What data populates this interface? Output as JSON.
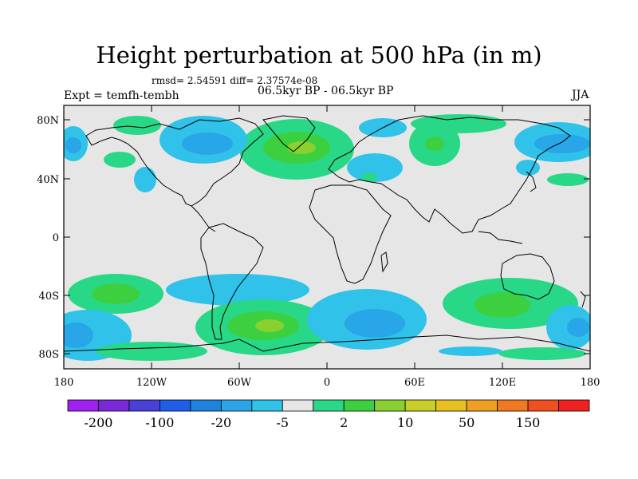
{
  "header": {
    "title": "Height perturbation at 500 hPa (in m)",
    "stats": "rmsd= 2.54591  diff= 2.37574e-08",
    "experiment": "Expt = temfh-tembh",
    "period": "06.5kyr BP - 06.5kyr BP",
    "season": "JJA"
  },
  "map": {
    "background_color": "#e6e6e6",
    "lat_ticks": [
      "80N",
      "40N",
      "0",
      "40S",
      "80S"
    ],
    "lon_ticks": [
      "180",
      "120W",
      "60W",
      "0",
      "60E",
      "120E",
      "180"
    ]
  },
  "colorbar": {
    "colors": [
      "#a020f0",
      "#7a28d8",
      "#4a40d8",
      "#1e5ee8",
      "#1e82e0",
      "#28a6e8",
      "#30c2e8",
      "#e6e6e6",
      "#28d887",
      "#3cd040",
      "#8ad030",
      "#c8d028",
      "#e8c020",
      "#f0a020",
      "#f07820",
      "#f05020",
      "#f02020"
    ],
    "labels": [
      "-200",
      "-100",
      "-20",
      "-5",
      "2",
      "10",
      "50",
      "150"
    ]
  }
}
